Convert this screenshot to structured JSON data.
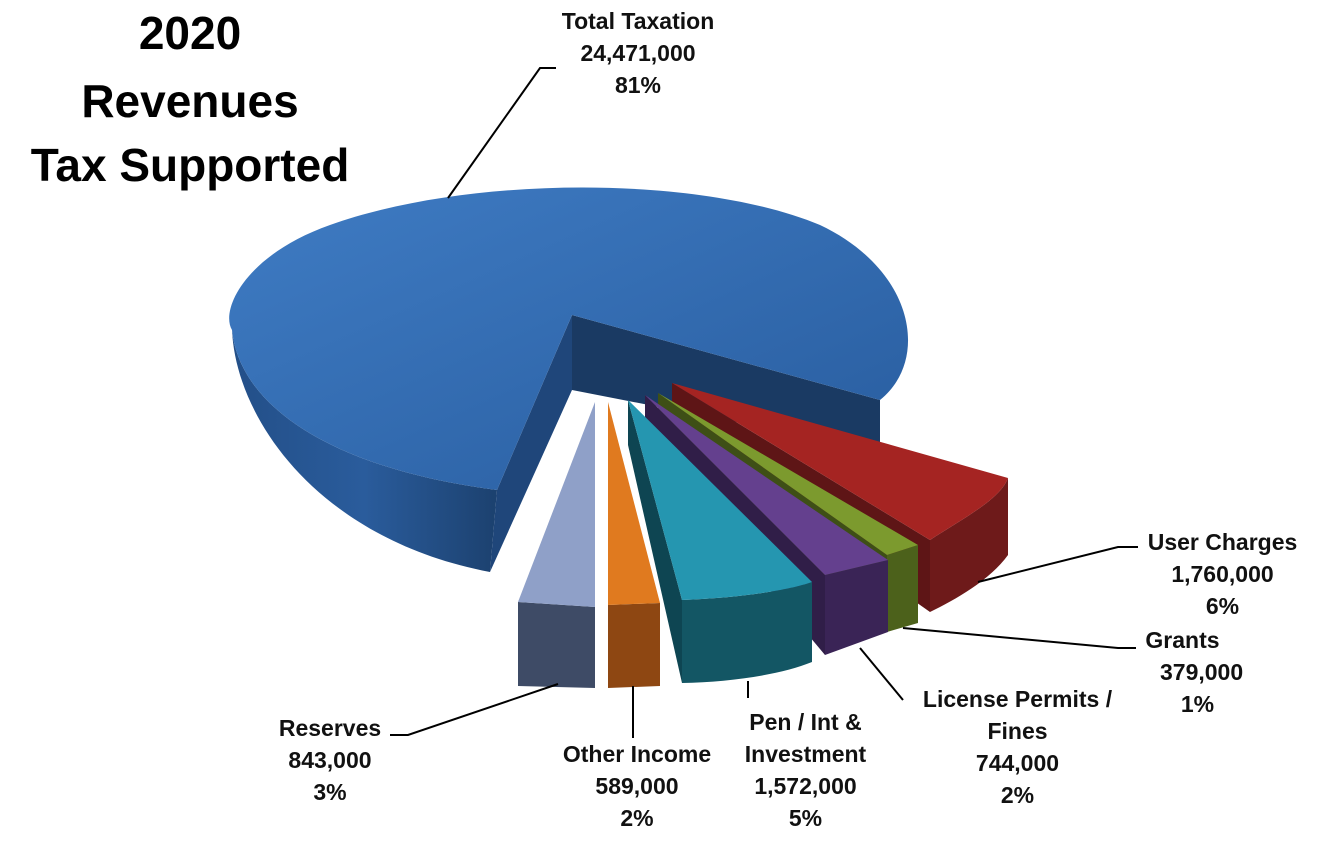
{
  "chart_data": {
    "type": "pie",
    "variant": "3d-exploded",
    "title": [
      "2020",
      "Revenues",
      "Tax Supported"
    ],
    "slices": [
      {
        "key": "total",
        "label": [
          "Total Taxation"
        ],
        "value": 24471000,
        "value_text": "24,471,000",
        "pct_text": "81%",
        "pct": 81,
        "color": "#2E66AC"
      },
      {
        "key": "user",
        "label": [
          "User Charges"
        ],
        "value": 1760000,
        "value_text": "1,760,000",
        "pct_text": "6%",
        "pct": 6,
        "color": "#A52422"
      },
      {
        "key": "grants",
        "label": [
          "Grants"
        ],
        "value": 379000,
        "value_text": "379,000",
        "pct_text": "1%",
        "pct": 1,
        "color": "#7C9A2E"
      },
      {
        "key": "license",
        "label": [
          "License Permits /",
          "Fines"
        ],
        "value": 744000,
        "value_text": "744,000",
        "pct_text": "2%",
        "pct": 2,
        "color": "#64408E"
      },
      {
        "key": "pen",
        "label": [
          "Pen / Int &",
          "Investment"
        ],
        "value": 1572000,
        "value_text": "1,572,000",
        "pct_text": "5%",
        "pct": 5,
        "color": "#2596B0"
      },
      {
        "key": "other",
        "label": [
          "Other Income"
        ],
        "value": 589000,
        "value_text": "589,000",
        "pct_text": "2%",
        "pct": 2,
        "color": "#E07A1F"
      },
      {
        "key": "reserves",
        "label": [
          "Reserves"
        ],
        "value": 843000,
        "value_text": "843,000",
        "pct_text": "3%",
        "pct": 3,
        "color": "#8FA0C8"
      }
    ]
  }
}
